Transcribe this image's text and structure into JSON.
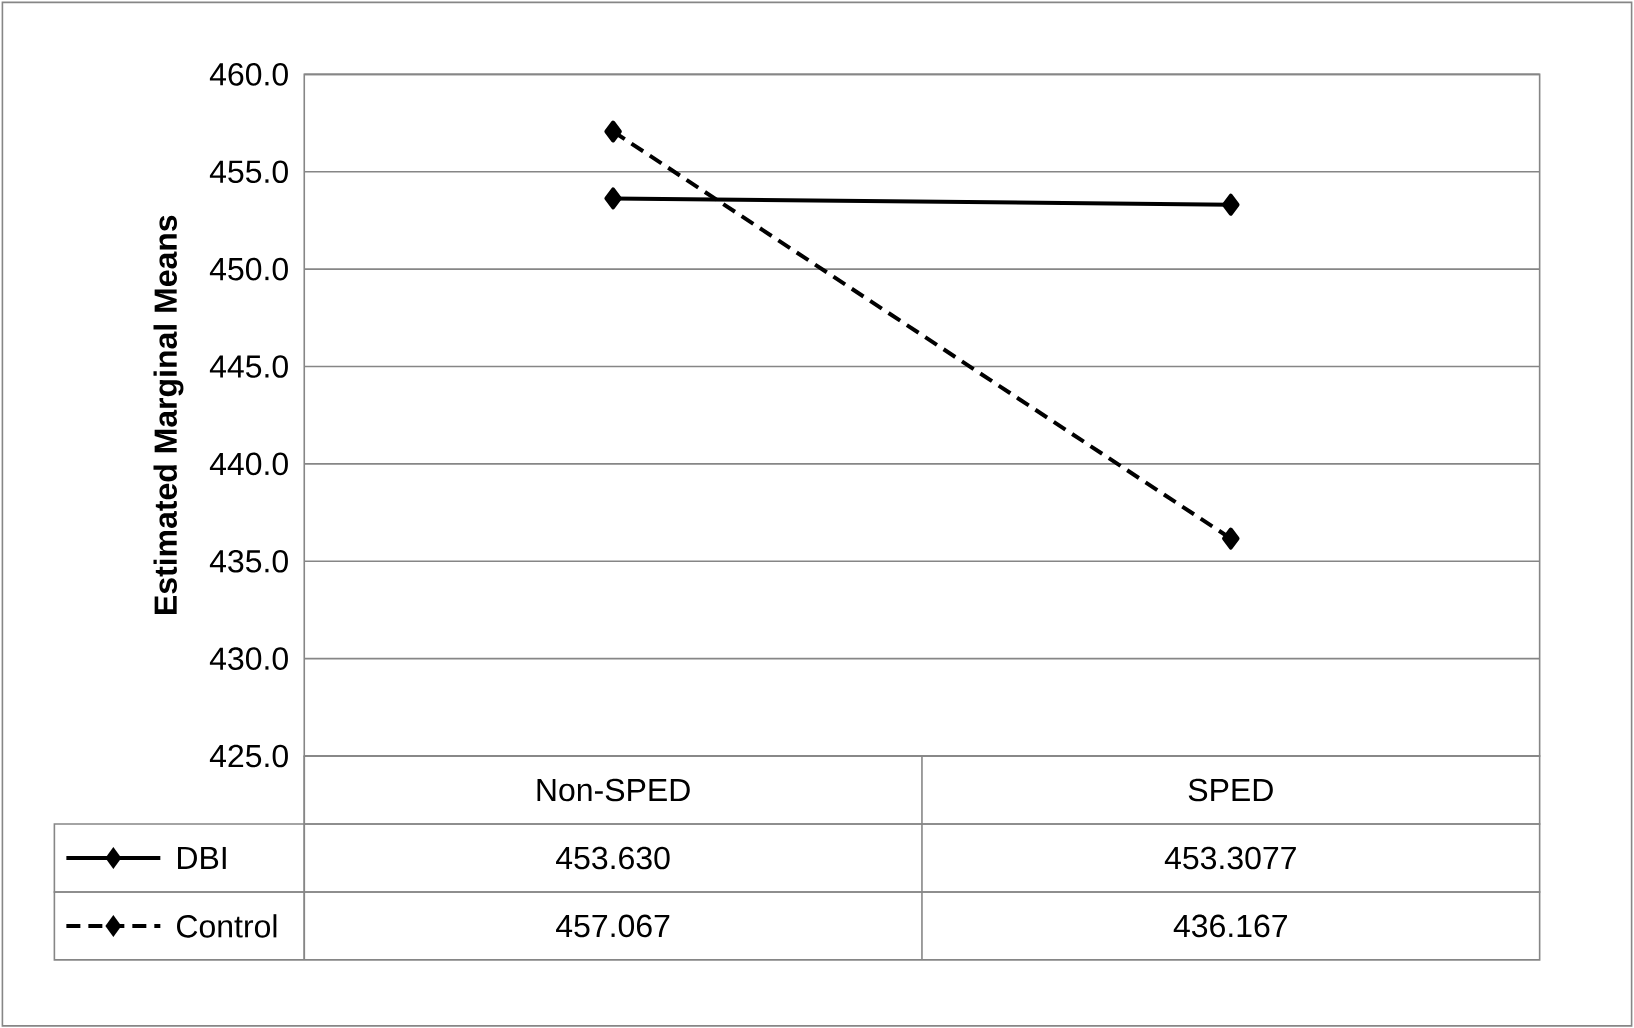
{
  "chart_data": {
    "type": "line",
    "ylabel": "Estimated Marginal Means",
    "categories": [
      "Non-SPED",
      "SPED"
    ],
    "series": [
      {
        "name": "DBI",
        "color": "#000000",
        "line_style": "solid",
        "values": [
          453.63,
          453.3077
        ],
        "value_labels": [
          "453.630",
          "453.3077"
        ]
      },
      {
        "name": "Control",
        "color": "#000000",
        "line_style": "dashed",
        "values": [
          457.067,
          436.167
        ],
        "value_labels": [
          "457.067",
          "436.167"
        ]
      }
    ],
    "ylim": [
      425,
      460
    ],
    "yticks": [
      {
        "value": 425,
        "label": "425.0"
      },
      {
        "value": 430,
        "label": "430.0"
      },
      {
        "value": 435,
        "label": "435.0"
      },
      {
        "value": 440,
        "label": "440.0"
      },
      {
        "value": 445,
        "label": "445.0"
      },
      {
        "value": 450,
        "label": "450.0"
      },
      {
        "value": 455,
        "label": "455.0"
      },
      {
        "value": 460,
        "label": "460.0"
      }
    ],
    "grid": "y",
    "legend": "bottom left",
    "marker": "diamond"
  }
}
